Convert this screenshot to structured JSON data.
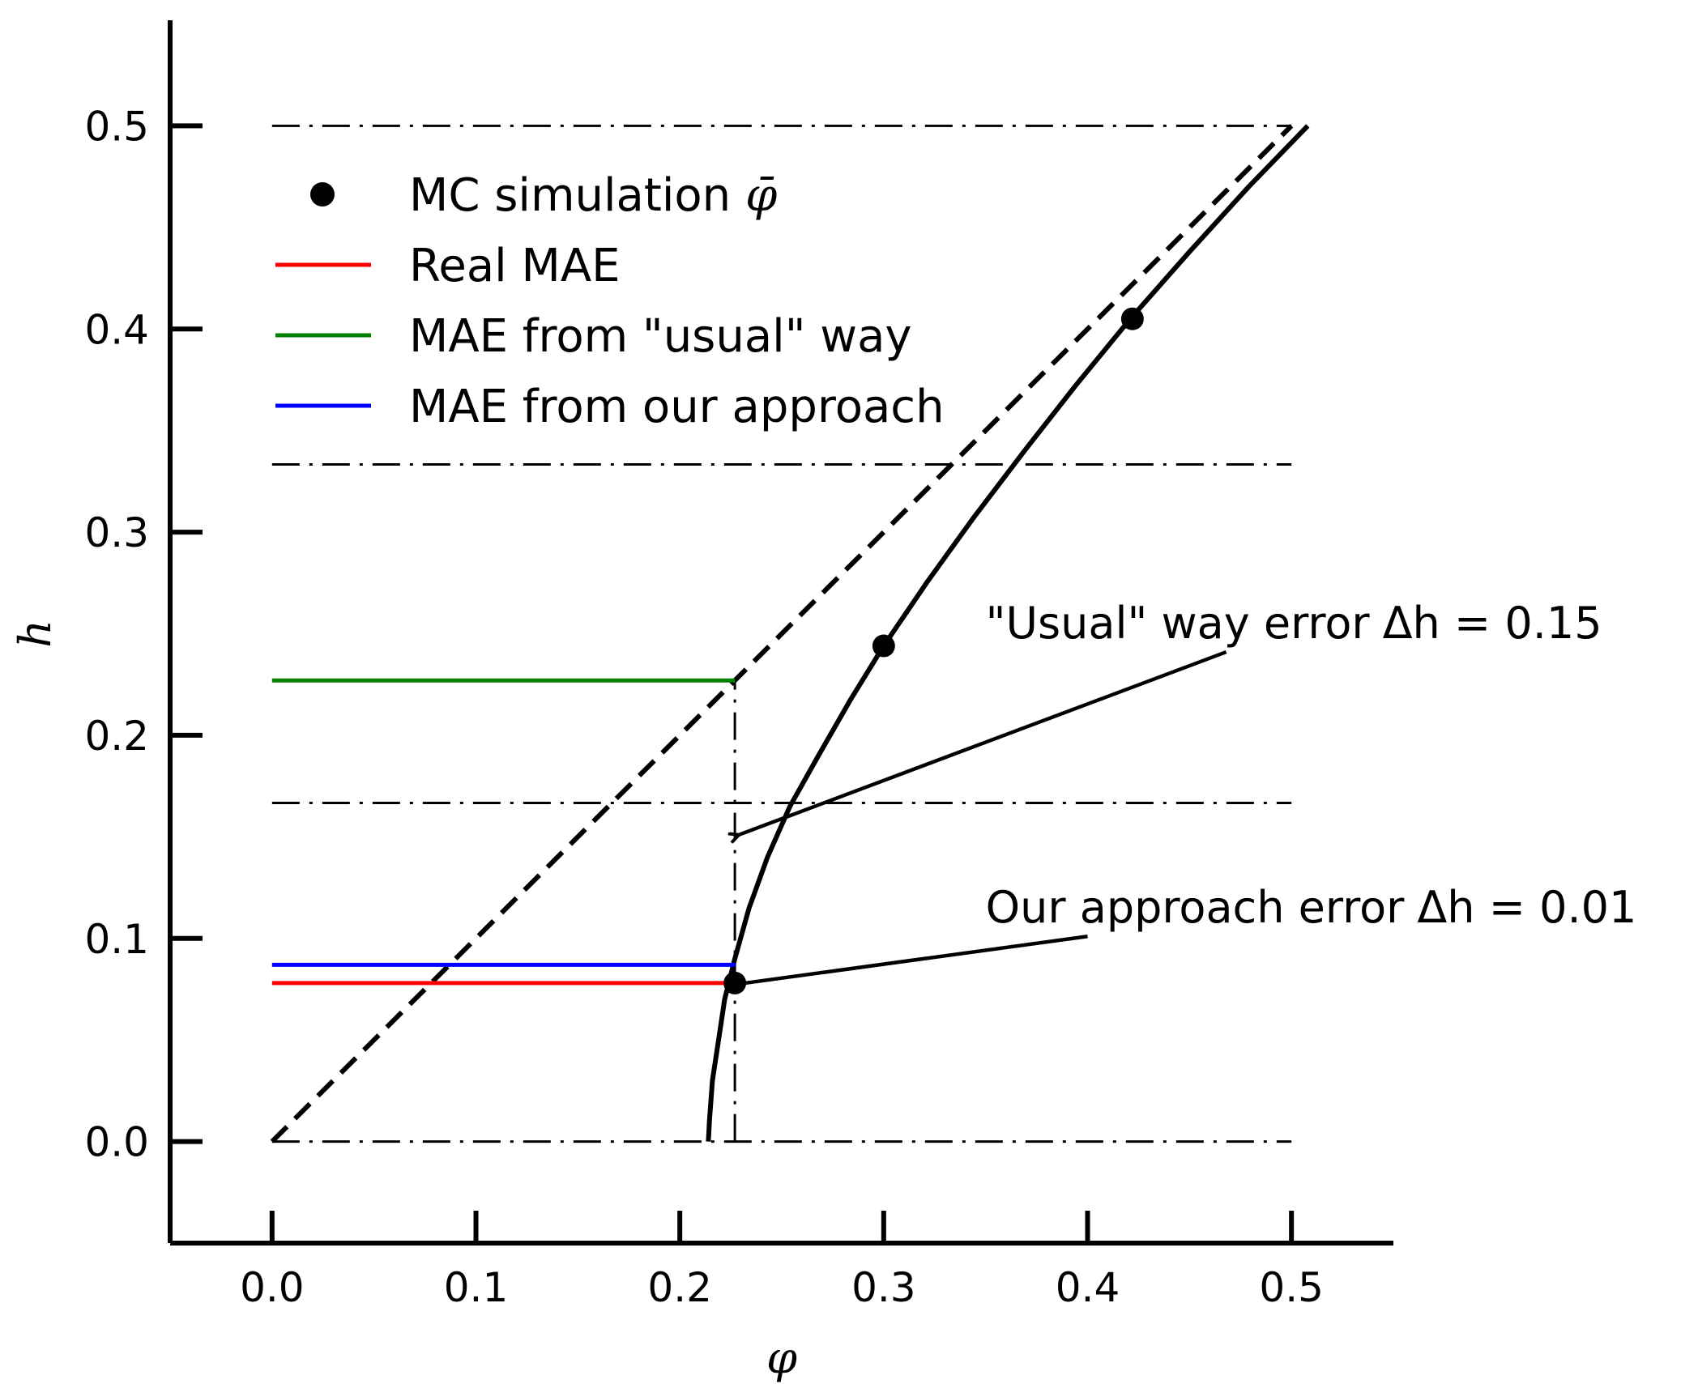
{
  "chart_data": {
    "type": "line",
    "xlabel": "φ",
    "ylabel": "h",
    "xlim": [
      -0.05,
      0.55
    ],
    "ylim": [
      -0.05,
      0.55
    ],
    "xticks": [
      "0.0",
      "0.1",
      "0.2",
      "0.3",
      "0.4",
      "0.5"
    ],
    "yticks": [
      "0.0",
      "0.1",
      "0.2",
      "0.3",
      "0.4",
      "0.5"
    ],
    "grid": false,
    "legend_position": "upper-left",
    "legend": [
      {
        "label": "MC simulation",
        "label_math": "φ̄",
        "kind": "marker",
        "color": "#000000"
      },
      {
        "label": "Real MAE",
        "kind": "line",
        "color": "#ff0000"
      },
      {
        "label": "MAE from \"usual\" way",
        "kind": "line",
        "color": "#008000"
      },
      {
        "label": "MAE from our approach",
        "kind": "line",
        "color": "#0000ff"
      }
    ],
    "series": [
      {
        "kind": "diagonal",
        "style": "dashed",
        "color": "#000000",
        "x": [
          0.0,
          0.5
        ],
        "y": [
          0.0,
          0.5
        ]
      },
      {
        "kind": "curve",
        "style": "solid",
        "color": "#000000",
        "x": [
          0.214,
          0.2145,
          0.216,
          0.219,
          0.222,
          0.227,
          0.234,
          0.243,
          0.254,
          0.268,
          0.284,
          0.3,
          0.321,
          0.344,
          0.369,
          0.394,
          0.421,
          0.45,
          0.479,
          0.508
        ],
        "y": [
          0.0,
          0.01,
          0.03,
          0.05,
          0.07,
          0.09,
          0.115,
          0.14,
          0.165,
          0.19,
          0.218,
          0.244,
          0.275,
          0.307,
          0.34,
          0.372,
          0.405,
          0.438,
          0.47,
          0.5
        ]
      },
      {
        "kind": "points",
        "name": "MC simulation",
        "color": "#000000",
        "x": [
          0.227,
          0.3,
          0.422
        ],
        "y": [
          0.078,
          0.244,
          0.405
        ]
      },
      {
        "kind": "hline",
        "name": "Real MAE",
        "color": "#ff0000",
        "x": [
          0.0,
          0.227
        ],
        "y": [
          0.078,
          0.078
        ]
      },
      {
        "kind": "hline",
        "name": "MAE from \"usual\" way",
        "color": "#008000",
        "x": [
          0.0,
          0.227
        ],
        "y": [
          0.227,
          0.227
        ]
      },
      {
        "kind": "hline",
        "name": "MAE from our approach",
        "color": "#0000ff",
        "x": [
          0.0,
          0.227
        ],
        "y": [
          0.087,
          0.087
        ]
      }
    ],
    "reference_lines": {
      "horizontal": {
        "style": "dashdot",
        "y": [
          0.0,
          0.1667,
          0.3333,
          0.5
        ],
        "x_range": [
          0.0,
          0.5
        ]
      },
      "vertical": {
        "style": "dashdot",
        "x": 0.227,
        "y_range": [
          0.0,
          0.227
        ]
      }
    },
    "annotations": [
      {
        "text": "\"Usual\" way error",
        "math": "Δh = 0.15",
        "text_xy": [
          0.35,
          0.255
        ],
        "arrow_from": [
          0.468,
          0.241
        ],
        "arrow_to": [
          0.229,
          0.151
        ]
      },
      {
        "text": "Our approach error",
        "math": "Δh = 0.01",
        "text_xy": [
          0.35,
          0.115
        ],
        "arrow_from": [
          0.4,
          0.101
        ],
        "arrow_to": [
          0.232,
          0.078
        ]
      }
    ]
  }
}
